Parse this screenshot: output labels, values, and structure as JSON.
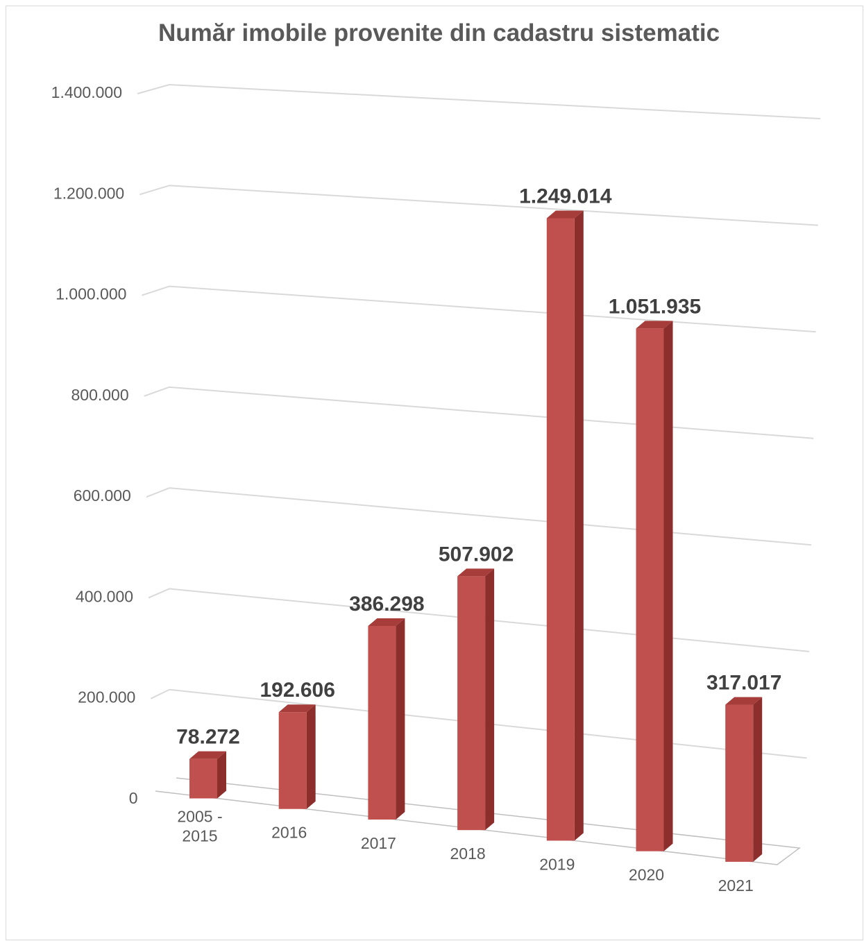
{
  "chart_data": {
    "type": "bar",
    "title": "Număr imobile provenite din cadastru sistematic",
    "categories": [
      [
        "2005 -",
        "2015"
      ],
      [
        "2016"
      ],
      [
        "2017"
      ],
      [
        "2018"
      ],
      [
        "2019"
      ],
      [
        "2020"
      ],
      [
        "2021"
      ]
    ],
    "values": [
      78272,
      192606,
      386298,
      507902,
      1249014,
      1051935,
      317017
    ],
    "data_labels": [
      "78.272",
      "192.606",
      "386.298",
      "507.902",
      "1.249.014",
      "1.051.935",
      "317.017"
    ],
    "y_ticks": [
      0,
      200000,
      400000,
      600000,
      800000,
      1000000,
      1200000,
      1400000
    ],
    "y_tick_labels": [
      "0",
      "200.000",
      "400.000",
      "600.000",
      "800.000",
      "1.000.000",
      "1.200.000",
      "1.400.000"
    ],
    "ylim": [
      0,
      1400000
    ],
    "grid": true,
    "legend": "none",
    "style": "3d-column",
    "colors": {
      "bar_front": "#c0504d",
      "bar_side": "#8b2e2c",
      "bar_top": "#a63d3a",
      "grid": "#d9d9d9",
      "text": "#595959",
      "label": "#404040"
    }
  }
}
